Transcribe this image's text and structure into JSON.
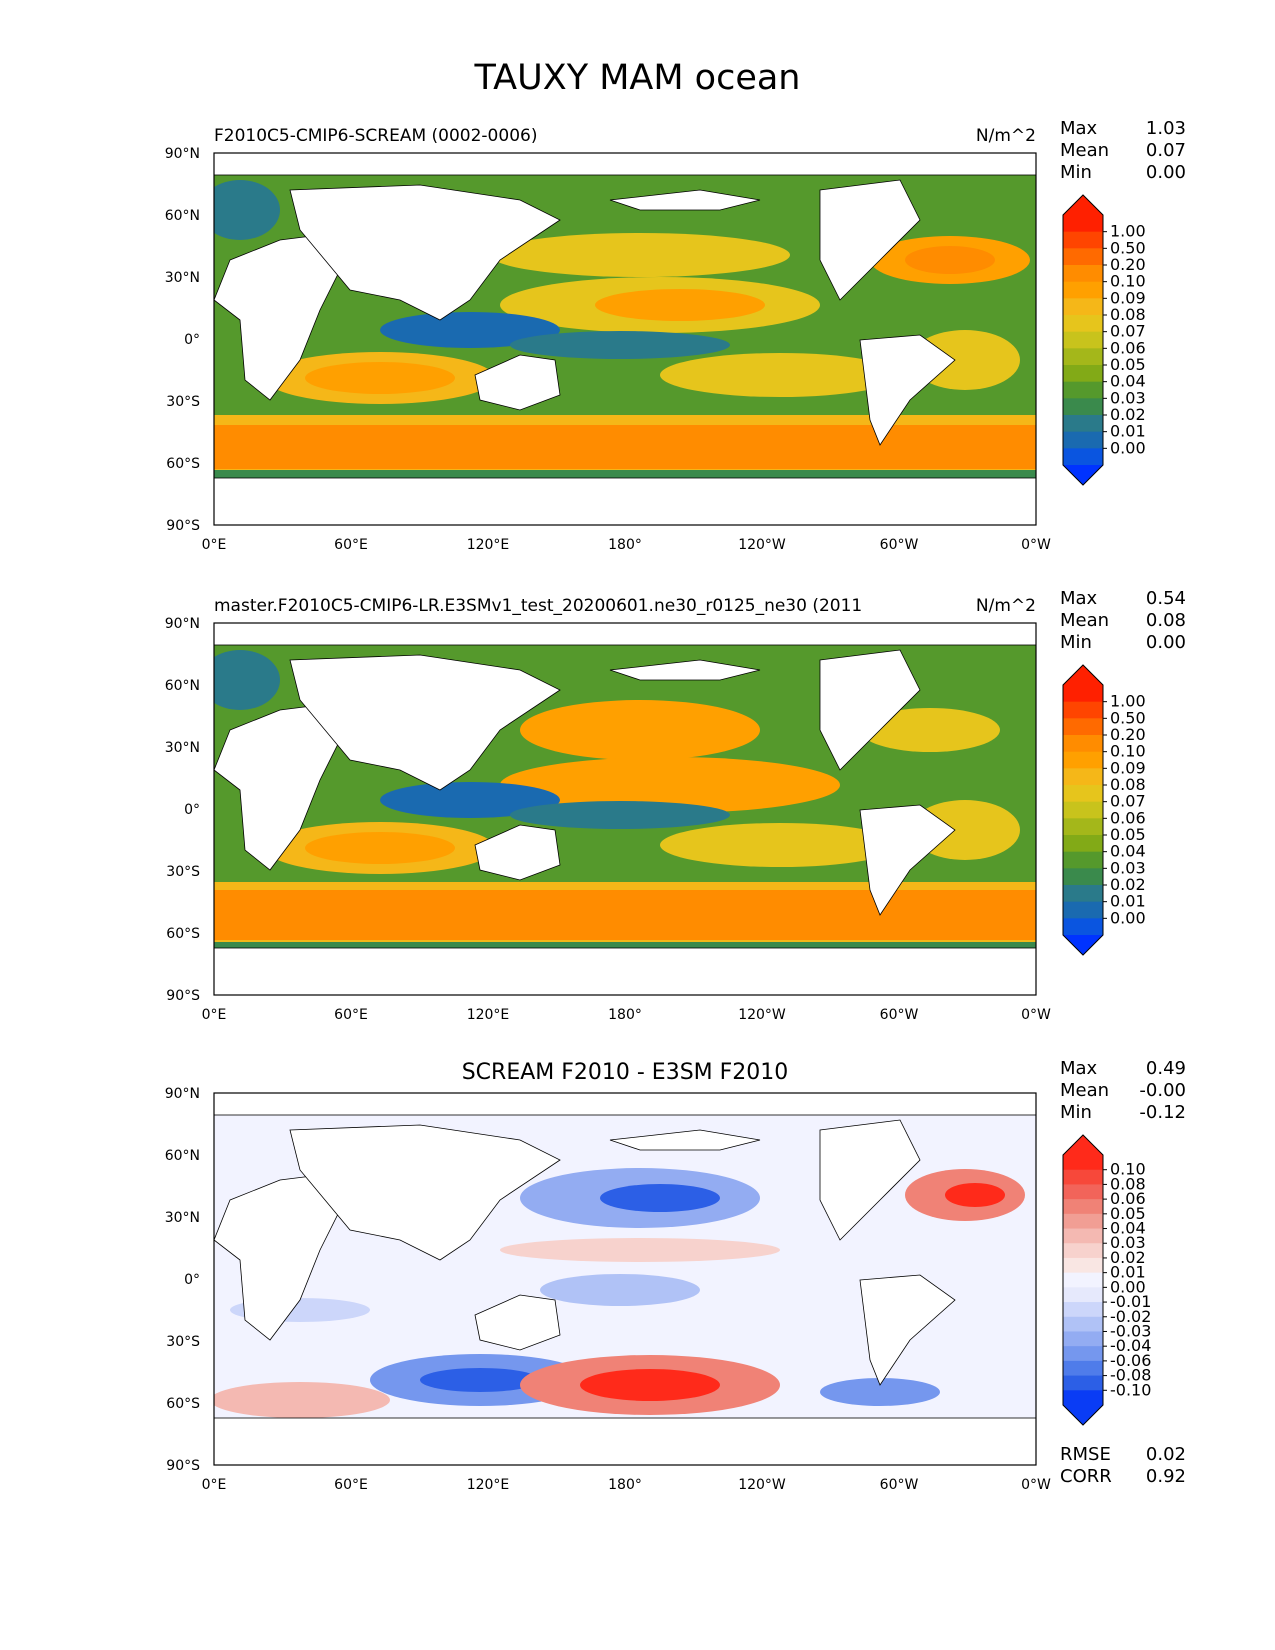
{
  "figure_title": "TAUXY MAM ocean",
  "panels": [
    {
      "title_left": "F2010C5-CMIP6-SCREAM (0002-0006)",
      "title_center": "",
      "units": "N/m^2",
      "stats": [
        [
          "Max",
          "1.03"
        ],
        [
          "Mean",
          "0.07"
        ],
        [
          "Min",
          "0.00"
        ]
      ],
      "extra_stats": [],
      "colorbar": {
        "labels": [
          "1.00",
          "0.50",
          "0.20",
          "0.10",
          "0.09",
          "0.08",
          "0.07",
          "0.06",
          "0.05",
          "0.04",
          "0.03",
          "0.02",
          "0.01",
          "0.00"
        ],
        "colors": [
          "#ff2000",
          "#ff4500",
          "#ff6a00",
          "#ff8c00",
          "#ffa000",
          "#f5b718",
          "#e6c51c",
          "#c8c31c",
          "#a4b71a",
          "#82aa17",
          "#55992c",
          "#3a8a4c",
          "#2a7a8a",
          "#1a6ab0",
          "#0a55e0"
        ],
        "top_arrow_color": "#ff2000",
        "bottom_arrow_color": "#0033ff"
      }
    },
    {
      "title_left": "master.F2010C5-CMIP6-LR.E3SMv1_test_20200601.ne30_r0125_ne30 (2011",
      "title_center": "",
      "units": "N/m^2",
      "stats": [
        [
          "Max",
          "0.54"
        ],
        [
          "Mean",
          "0.08"
        ],
        [
          "Min",
          "0.00"
        ]
      ],
      "extra_stats": [],
      "colorbar": {
        "labels": [
          "1.00",
          "0.50",
          "0.20",
          "0.10",
          "0.09",
          "0.08",
          "0.07",
          "0.06",
          "0.05",
          "0.04",
          "0.03",
          "0.02",
          "0.01",
          "0.00"
        ],
        "colors": [
          "#ff2000",
          "#ff4500",
          "#ff6a00",
          "#ff8c00",
          "#ffa000",
          "#f5b718",
          "#e6c51c",
          "#c8c31c",
          "#a4b71a",
          "#82aa17",
          "#55992c",
          "#3a8a4c",
          "#2a7a8a",
          "#1a6ab0",
          "#0a55e0"
        ],
        "top_arrow_color": "#ff2000",
        "bottom_arrow_color": "#0033ff"
      }
    },
    {
      "title_left": "",
      "title_center": "SCREAM F2010 - E3SM F2010",
      "units": "",
      "stats": [
        [
          "Max",
          "0.49"
        ],
        [
          "Mean",
          "-0.00"
        ],
        [
          "Min",
          "-0.12"
        ]
      ],
      "extra_stats": [
        [
          "RMSE",
          "0.02"
        ],
        [
          "CORR",
          "0.92"
        ]
      ],
      "colorbar": {
        "labels": [
          "0.10",
          "0.08",
          "0.06",
          "0.05",
          "0.04",
          "0.03",
          "0.02",
          "0.01",
          "0.00",
          "-0.01",
          "-0.02",
          "-0.03",
          "-0.04",
          "-0.06",
          "-0.08",
          "-0.10"
        ],
        "colors": [
          "#ff2a1a",
          "#f7483a",
          "#f2645a",
          "#f08276",
          "#f19e94",
          "#f4b9b2",
          "#f7d2cd",
          "#f9e6e3",
          "#f2f3ff",
          "#e6e9fc",
          "#ccd6fa",
          "#b0c2f6",
          "#93acf2",
          "#7597ee",
          "#4f7cea",
          "#2c5fe6",
          "#0a3cf5"
        ],
        "top_arrow_color": "#ff2a1a",
        "bottom_arrow_color": "#0a3cf5"
      }
    }
  ],
  "lat_ticks": [
    "90°N",
    "60°N",
    "30°N",
    "0°",
    "30°S",
    "60°S",
    "90°S"
  ],
  "lon_ticks": [
    "0°E",
    "60°E",
    "120°E",
    "180°",
    "120°W",
    "60°W",
    "0°W"
  ]
}
